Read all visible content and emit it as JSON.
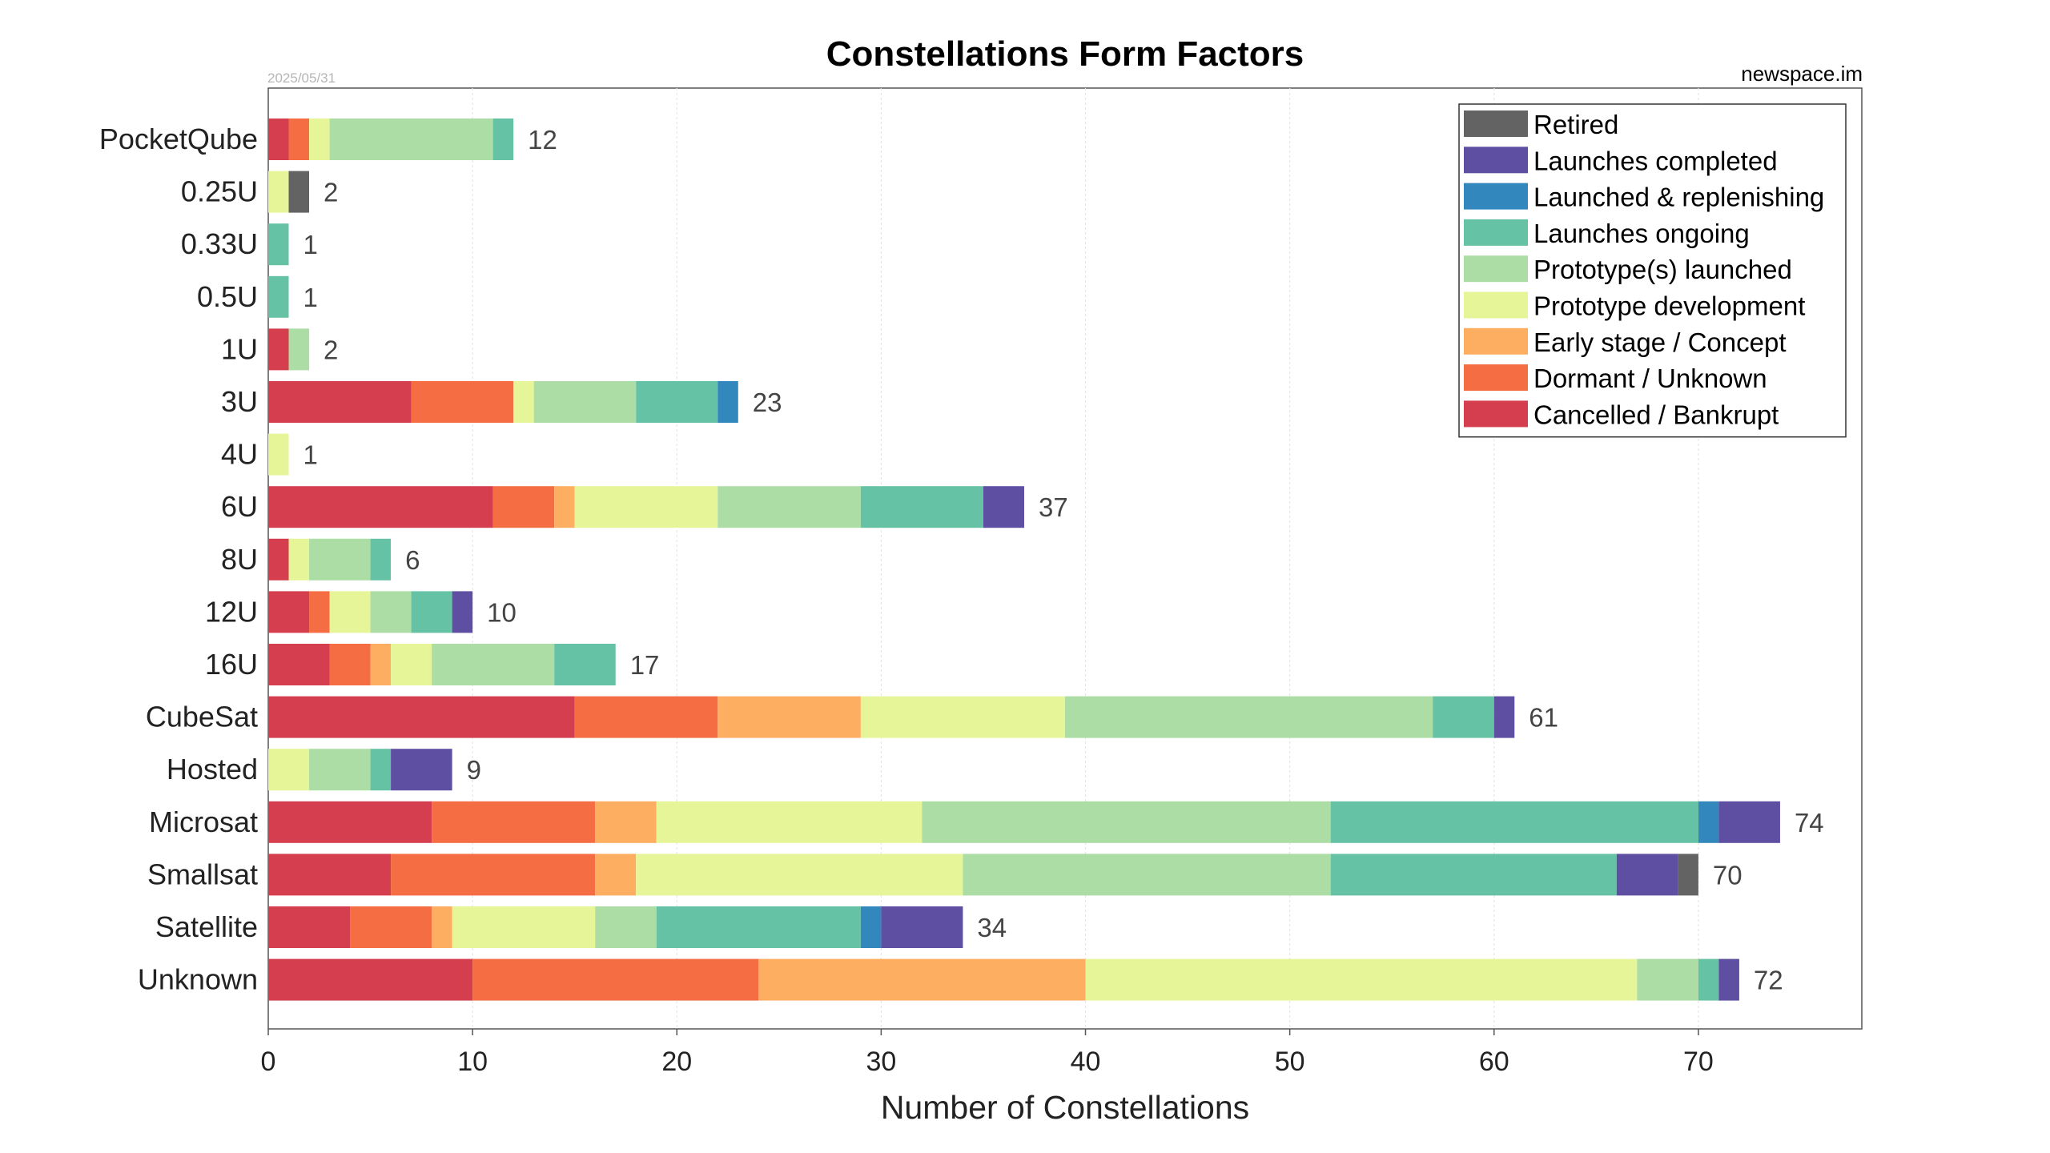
{
  "header": {
    "title": "Constellations Form Factors",
    "date": "2025/05/31",
    "source": "newspace.im"
  },
  "chart_data": {
    "type": "bar",
    "orientation": "horizontal",
    "stacked": true,
    "title": "Constellations Form Factors",
    "xlabel": "Number of Constellations",
    "ylabel": "",
    "xlim": [
      0,
      78
    ],
    "xticks": [
      0,
      10,
      20,
      30,
      40,
      50,
      60,
      70
    ],
    "grid": true,
    "legend_position": "top-right",
    "categories": [
      "PocketQube",
      "0.25U",
      "0.33U",
      "0.5U",
      "1U",
      "3U",
      "4U",
      "6U",
      "8U",
      "12U",
      "16U",
      "CubeSat",
      "Hosted",
      "Microsat",
      "Smallsat",
      "Satellite",
      "Unknown"
    ],
    "totals": [
      12,
      2,
      1,
      1,
      2,
      23,
      1,
      37,
      6,
      10,
      17,
      61,
      9,
      74,
      70,
      34,
      72
    ],
    "series": [
      {
        "name": "Cancelled / Bankrupt",
        "color": "#d53e4f",
        "values": [
          1,
          0,
          0,
          0,
          1,
          7,
          0,
          11,
          1,
          2,
          3,
          15,
          0,
          8,
          6,
          4,
          10
        ]
      },
      {
        "name": "Dormant / Unknown",
        "color": "#f46d43",
        "values": [
          1,
          0,
          0,
          0,
          0,
          5,
          0,
          3,
          0,
          1,
          2,
          7,
          0,
          8,
          10,
          4,
          14
        ]
      },
      {
        "name": "Early stage / Concept",
        "color": "#fdae61",
        "values": [
          0,
          0,
          0,
          0,
          0,
          0,
          0,
          1,
          0,
          0,
          1,
          7,
          0,
          3,
          2,
          1,
          16
        ]
      },
      {
        "name": "Prototype development",
        "color": "#e6f598",
        "values": [
          1,
          1,
          0,
          0,
          0,
          1,
          1,
          7,
          1,
          2,
          2,
          10,
          2,
          13,
          16,
          7,
          27
        ]
      },
      {
        "name": "Prototype(s) launched",
        "color": "#abdda4",
        "values": [
          8,
          0,
          0,
          0,
          1,
          5,
          0,
          7,
          3,
          2,
          6,
          18,
          3,
          20,
          18,
          3,
          3
        ]
      },
      {
        "name": "Launches ongoing",
        "color": "#66c2a5",
        "values": [
          1,
          0,
          1,
          1,
          0,
          4,
          0,
          6,
          1,
          2,
          3,
          3,
          1,
          18,
          14,
          10,
          1
        ]
      },
      {
        "name": "Launched & replenishing",
        "color": "#3288bd",
        "values": [
          0,
          0,
          0,
          0,
          0,
          1,
          0,
          0,
          0,
          0,
          0,
          0,
          0,
          1,
          0,
          1,
          0
        ]
      },
      {
        "name": "Launches completed",
        "color": "#5e4fa2",
        "values": [
          0,
          0,
          0,
          0,
          0,
          0,
          0,
          2,
          0,
          1,
          0,
          1,
          3,
          3,
          3,
          4,
          1
        ]
      },
      {
        "name": "Retired",
        "color": "#636363",
        "values": [
          0,
          1,
          0,
          0,
          0,
          0,
          0,
          0,
          0,
          0,
          0,
          0,
          0,
          0,
          1,
          0,
          0
        ]
      }
    ]
  }
}
